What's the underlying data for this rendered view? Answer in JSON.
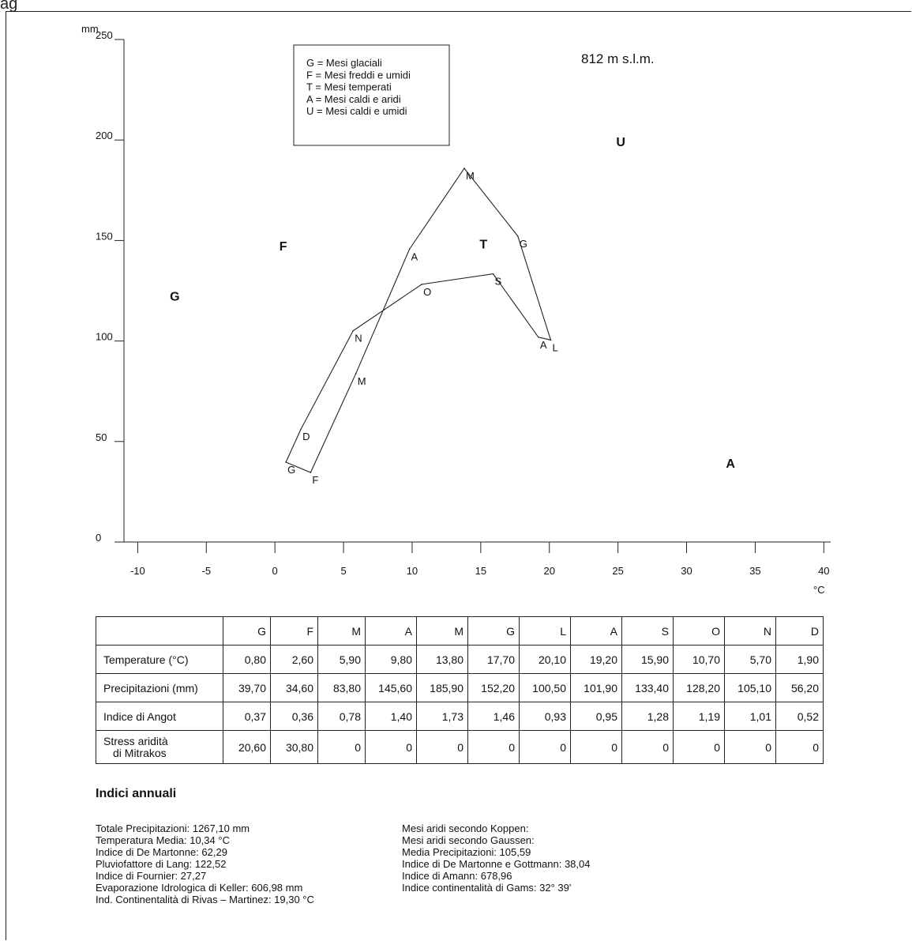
{
  "header_snippet": "ag",
  "chart_data": {
    "type": "line",
    "title": "",
    "altitude_label": "812 m s.l.m.",
    "ylabel": "mm",
    "xlabel": "°C",
    "xlim": [
      -11,
      40.5
    ],
    "ylim": [
      0,
      250
    ],
    "x_ticks": [
      -10,
      -5,
      0,
      5,
      10,
      15,
      20,
      25,
      30,
      35,
      40
    ],
    "y_ticks": [
      0,
      50,
      100,
      150,
      200,
      250
    ],
    "grid": false,
    "legend": {
      "placement": "top-center",
      "entries": [
        "G = Mesi glaciali",
        "F = Mesi freddi e umidi",
        "T = Mesi temperati",
        "A = Mesi caldi e aridi",
        "U = Mesi caldi e umidi"
      ]
    },
    "region_labels": [
      {
        "label": "G",
        "x": -7.3,
        "y": 120
      },
      {
        "label": "F",
        "x": 0.6,
        "y": 145
      },
      {
        "label": "T",
        "x": 15.2,
        "y": 146
      },
      {
        "label": "U",
        "x": 25.2,
        "y": 197
      },
      {
        "label": "A",
        "x": 33.2,
        "y": 37
      }
    ],
    "series": [
      {
        "points": [
          {
            "month": "G",
            "x": 0.8,
            "y": 39.7
          },
          {
            "month": "F",
            "x": 2.6,
            "y": 34.6
          },
          {
            "month": "M",
            "x": 5.9,
            "y": 83.8
          },
          {
            "month": "A",
            "x": 9.8,
            "y": 145.6
          },
          {
            "month": "M",
            "x": 13.8,
            "y": 185.9
          },
          {
            "month": "G",
            "x": 17.7,
            "y": 152.2
          },
          {
            "month": "L",
            "x": 20.1,
            "y": 100.5
          },
          {
            "month": "A",
            "x": 19.2,
            "y": 101.9
          },
          {
            "month": "S",
            "x": 15.9,
            "y": 133.4
          },
          {
            "month": "O",
            "x": 10.7,
            "y": 128.2
          },
          {
            "month": "N",
            "x": 5.7,
            "y": 105.1
          },
          {
            "month": "D",
            "x": 1.9,
            "y": 56.2
          }
        ]
      }
    ]
  },
  "table": {
    "months": [
      "G",
      "F",
      "M",
      "A",
      "M",
      "G",
      "L",
      "A",
      "S",
      "O",
      "N",
      "D"
    ],
    "rows": [
      {
        "label": "Temperature (°C)",
        "values": [
          "0,80",
          "2,60",
          "5,90",
          "9,80",
          "13,80",
          "17,70",
          "20,10",
          "19,20",
          "15,90",
          "10,70",
          "5,70",
          "1,90"
        ]
      },
      {
        "label": "Precipitazioni (mm)",
        "values": [
          "39,70",
          "34,60",
          "83,80",
          "145,60",
          "185,90",
          "152,20",
          "100,50",
          "101,90",
          "133,40",
          "128,20",
          "105,10",
          "56,20"
        ]
      },
      {
        "label": "Indice di Angot",
        "values": [
          "0,37",
          "0,36",
          "0,78",
          "1,40",
          "1,73",
          "1,46",
          "0,93",
          "0,95",
          "1,28",
          "1,19",
          "1,01",
          "0,52"
        ]
      },
      {
        "label_line1": "Stress aridità",
        "label_line2": "di Mitrakos",
        "values": [
          "20,60",
          "30,80",
          "0",
          "0",
          "0",
          "0",
          "0",
          "0",
          "0",
          "0",
          "0",
          "0"
        ]
      }
    ]
  },
  "annual": {
    "title": "Indici annuali",
    "left": [
      "Totale Precipitazioni: 1267,10 mm",
      "Temperatura Media: 10,34 °C",
      "Indice di De Martonne: 62,29",
      "Pluviofattore di Lang: 122,52",
      "Indice di Fournier: 27,27",
      "Evaporazione Idrologica di Keller: 606,98 mm",
      "Ind. Continentalità di Rivas – Martinez: 19,30 °C"
    ],
    "right": [
      "Mesi aridi secondo Koppen:",
      "Mesi aridi secondo Gaussen:",
      "Media Precipitazioni: 105,59",
      "Indice di De Martonne e Gottmann: 38,04",
      "Indice di Amann: 678,96",
      "Indice continentalità di Gams: 32° 39'"
    ]
  }
}
